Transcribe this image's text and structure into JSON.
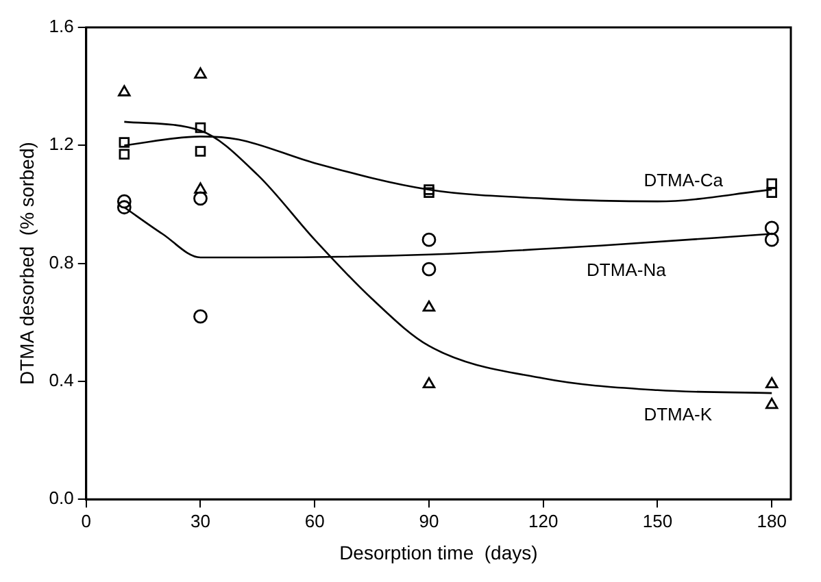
{
  "chart_data": {
    "type": "scatter",
    "xlabel": "Desorption time  (days)",
    "ylabel": "DTMA desorbed  (% sorbed)",
    "xlim": [
      0,
      185
    ],
    "xticks": [
      0,
      30,
      60,
      90,
      120,
      150,
      180
    ],
    "ylim": [
      0,
      1.6
    ],
    "yticks": [
      {
        "value": 0,
        "label": "0.0"
      },
      0.4,
      0.8,
      1.2,
      1.6
    ],
    "grid": false,
    "legend": false,
    "series": [
      {
        "type": "scatter",
        "marker": "triangle",
        "color": "#000000",
        "x": [
          10,
          30,
          30,
          90,
          90,
          180,
          180
        ],
        "values": [
          1.38,
          1.44,
          1.05,
          0.65,
          0.39,
          0.39,
          0.32
        ]
      },
      {
        "type": "scatter",
        "marker": "square",
        "color": "#000000",
        "x": [
          10,
          10,
          30,
          30,
          90,
          90,
          180,
          180
        ],
        "values": [
          1.21,
          1.17,
          1.26,
          1.18,
          1.05,
          1.04,
          1.07,
          1.04
        ]
      },
      {
        "type": "scatter",
        "marker": "circle",
        "color": "#000000",
        "x": [
          10,
          10,
          30,
          30,
          90,
          90,
          180,
          180
        ],
        "values": [
          1.01,
          0.99,
          1.02,
          0.62,
          0.88,
          0.78,
          0.92,
          0.88
        ]
      },
      {
        "type": "line",
        "name": "DTMA-Ca",
        "color": "#000000",
        "marker": "none",
        "x": [
          10,
          30,
          40,
          60,
          90,
          120,
          150,
          180
        ],
        "values": [
          1.2,
          1.23,
          1.22,
          1.14,
          1.05,
          1.02,
          1.01,
          1.05
        ]
      },
      {
        "type": "line",
        "name": "DTMA-Na",
        "color": "#000000",
        "marker": "none",
        "x": [
          10,
          20,
          30,
          45,
          90,
          135,
          180
        ],
        "values": [
          0.99,
          0.9,
          0.82,
          0.82,
          0.83,
          0.86,
          0.9
        ]
      },
      {
        "type": "line",
        "name": "DTMA-K",
        "color": "#000000",
        "marker": "none",
        "x": [
          10,
          30,
          45,
          60,
          75,
          90,
          120,
          150,
          180
        ],
        "values": [
          1.28,
          1.25,
          1.1,
          0.88,
          0.68,
          0.52,
          0.41,
          0.37,
          0.36
        ]
      }
    ]
  }
}
